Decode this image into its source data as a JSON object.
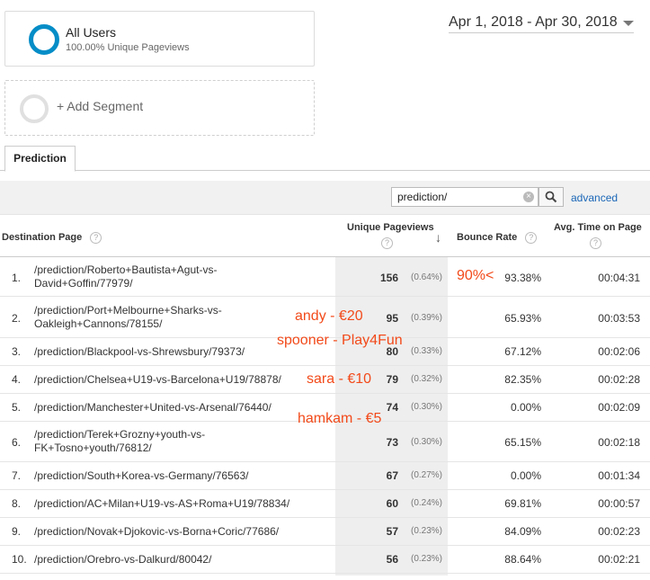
{
  "segment": {
    "title": "All Users",
    "subtitle": "100.00% Unique Pageviews"
  },
  "add_segment": {
    "label": "+ Add Segment"
  },
  "date_range": "Apr 1, 2018 - Apr 30, 2018",
  "tabs": [
    {
      "label": "Prediction"
    }
  ],
  "filter": {
    "value": "prediction/",
    "advanced_label": "advanced"
  },
  "table": {
    "headers": {
      "destination": "Destination Page",
      "unique_pageviews": "Unique Pageviews",
      "bounce_rate": "Bounce Rate",
      "avg_time": "Avg. Time on Page"
    },
    "rows": [
      {
        "num": "1.",
        "page": "/prediction/Roberto+Bautista+Agut-vs-David+Goffin/77979/",
        "upv": "156",
        "pct": "(0.64%)",
        "bounce": "93.38%",
        "avg": "00:04:31"
      },
      {
        "num": "2.",
        "page": "/prediction/Port+Melbourne+Sharks-vs-Oakleigh+Cannons/78155/",
        "upv": "95",
        "pct": "(0.39%)",
        "bounce": "65.93%",
        "avg": "00:03:53"
      },
      {
        "num": "3.",
        "page": "/prediction/Blackpool-vs-Shrewsbury/79373/",
        "upv": "80",
        "pct": "(0.33%)",
        "bounce": "67.12%",
        "avg": "00:02:06"
      },
      {
        "num": "4.",
        "page": "/prediction/Chelsea+U19-vs-Barcelona+U19/78878/",
        "upv": "79",
        "pct": "(0.32%)",
        "bounce": "82.35%",
        "avg": "00:02:28"
      },
      {
        "num": "5.",
        "page": "/prediction/Manchester+United-vs-Arsenal/76440/",
        "upv": "74",
        "pct": "(0.30%)",
        "bounce": "0.00%",
        "avg": "00:02:09"
      },
      {
        "num": "6.",
        "page": "/prediction/Terek+Grozny+youth-vs-FK+Tosno+youth/76812/",
        "upv": "73",
        "pct": "(0.30%)",
        "bounce": "65.15%",
        "avg": "00:02:18"
      },
      {
        "num": "7.",
        "page": "/prediction/South+Korea-vs-Germany/76563/",
        "upv": "67",
        "pct": "(0.27%)",
        "bounce": "0.00%",
        "avg": "00:01:34"
      },
      {
        "num": "8.",
        "page": "/prediction/AC+Milan+U19-vs-AS+Roma+U19/78834/",
        "upv": "60",
        "pct": "(0.24%)",
        "bounce": "69.81%",
        "avg": "00:00:57"
      },
      {
        "num": "9.",
        "page": "/prediction/Novak+Djokovic-vs-Borna+Coric/77686/",
        "upv": "57",
        "pct": "(0.23%)",
        "bounce": "84.09%",
        "avg": "00:02:23"
      },
      {
        "num": "10.",
        "page": "/prediction/Orebro-vs-Dalkurd/80042/",
        "upv": "56",
        "pct": "(0.23%)",
        "bounce": "88.64%",
        "avg": "00:02:21"
      }
    ]
  },
  "annotations": {
    "a1": "90%<",
    "a2": "andy - €20",
    "a3": "spooner - Play4Fun",
    "a4": "sara - €10",
    "a5": "hamkam - €5"
  },
  "colors": {
    "segment_ring": "#058dc7",
    "link": "#1a66b7",
    "annotation": "#f24a1a"
  }
}
